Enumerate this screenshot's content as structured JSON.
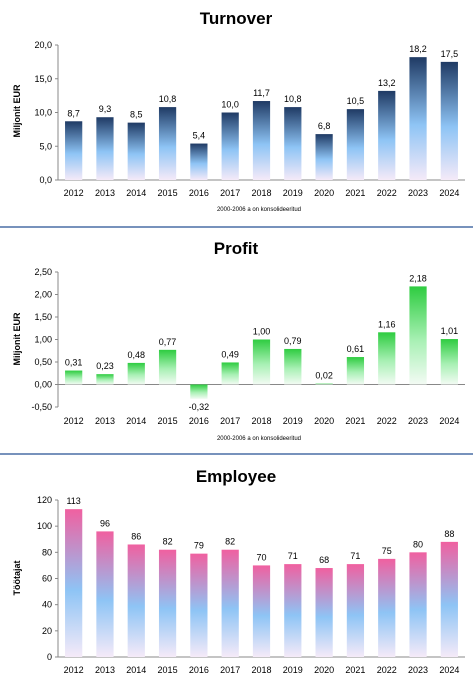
{
  "chart_data": [
    {
      "type": "bar",
      "title": "Turnover",
      "ylabel": "Miljonit EUR",
      "note": "2000-2006 a on konsolideeritud",
      "categories": [
        "2012",
        "2013",
        "2014",
        "2015",
        "2016",
        "2017",
        "2018",
        "2019",
        "2020",
        "2021",
        "2022",
        "2023",
        "2024"
      ],
      "values": [
        8.7,
        9.3,
        8.5,
        10.8,
        5.4,
        10.0,
        11.7,
        10.8,
        6.8,
        10.5,
        13.2,
        18.2,
        17.5
      ],
      "value_labels": [
        "8,7",
        "9,3",
        "8,5",
        "10,8",
        "5,4",
        "10,0",
        "11,7",
        "10,8",
        "6,8",
        "10,5",
        "13,2",
        "18,2",
        "17,5"
      ],
      "ylim": [
        0,
        20
      ],
      "yticks": [
        0,
        5,
        10,
        15,
        20
      ],
      "ytick_labels": [
        "0,0",
        "5,0",
        "10,0",
        "15,0",
        "20,0"
      ],
      "grid": false,
      "color_top": "#1f3a64",
      "color_mid": "#8ec4f5",
      "color_bottom": "#f5eaf8"
    },
    {
      "type": "bar",
      "title": "Profit",
      "ylabel": "Miljonit EUR",
      "note": "2000-2006 a on konsolideeritud",
      "categories": [
        "2012",
        "2013",
        "2014",
        "2015",
        "2016",
        "2017",
        "2018",
        "2019",
        "2020",
        "2021",
        "2022",
        "2023",
        "2024"
      ],
      "values": [
        0.31,
        0.23,
        0.48,
        0.77,
        -0.32,
        0.49,
        1.0,
        0.79,
        0.02,
        0.61,
        1.16,
        2.18,
        1.01
      ],
      "value_labels": [
        "0,31",
        "0,23",
        "0,48",
        "0,77",
        "-0,32",
        "0,49",
        "1,00",
        "0,79",
        "0,02",
        "0,61",
        "1,16",
        "2,18",
        "1,01"
      ],
      "ylim": [
        -0.5,
        2.5
      ],
      "yticks": [
        -0.5,
        0,
        0.5,
        1,
        1.5,
        2,
        2.5
      ],
      "ytick_labels": [
        "-0,50",
        "0,00",
        "0,50",
        "1,00",
        "1,50",
        "2,00",
        "2,50"
      ],
      "grid": false,
      "color_top": "#2ecc40",
      "color_mid": "#a8f0b4",
      "color_bottom": "#f3fbf4"
    },
    {
      "type": "bar",
      "title": "Employee",
      "ylabel": "Töötajat",
      "note": "",
      "categories": [
        "2012",
        "2013",
        "2014",
        "2015",
        "2016",
        "2017",
        "2018",
        "2019",
        "2020",
        "2021",
        "2022",
        "2023",
        "2024"
      ],
      "values": [
        113,
        96,
        86,
        82,
        79,
        82,
        70,
        71,
        68,
        71,
        75,
        80,
        88
      ],
      "value_labels": [
        "113",
        "96",
        "86",
        "82",
        "79",
        "82",
        "70",
        "71",
        "68",
        "71",
        "75",
        "80",
        "88"
      ],
      "ylim": [
        0,
        120
      ],
      "yticks": [
        0,
        20,
        40,
        60,
        80,
        100,
        120
      ],
      "ytick_labels": [
        "0",
        "20",
        "40",
        "60",
        "80",
        "100",
        "120"
      ],
      "grid": false,
      "color_top": "#f060a0",
      "color_mid": "#8ec4f5",
      "color_bottom": "#f5eaf8"
    }
  ],
  "divider_color": "#4a6fa5"
}
